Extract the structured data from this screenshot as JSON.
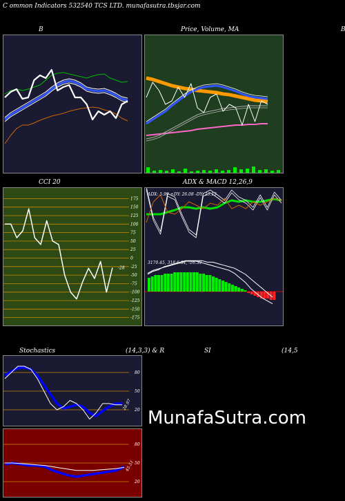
{
  "header": {
    "text": "C                              ommon  Indicators 532540  TCS LTD. munafasutra.tbsjar.com"
  },
  "titles": {
    "b": "B",
    "price": "Price,  Volume,  MA",
    "right_cut": "B",
    "cci": "CCI 20",
    "adx_macd": "ADX  & MACD 12,26,9",
    "stoch_left": "Stochastics",
    "stoch_mid": "(14,3,3) & R",
    "stoch_si": "SI",
    "stoch_right": "(14,5"
  },
  "watermark": "MunafaSutra.com",
  "colors": {
    "navy": "#1a1a33",
    "green_panel": "#1f3d1f",
    "olive_panel": "#2d4a14",
    "dark_red": "#7a0000"
  },
  "chart_data": [
    {
      "id": "bollinger",
      "type": "line",
      "series": [
        {
          "name": "upper",
          "color": "#00bb00",
          "values": [
            135,
            130,
            128,
            130,
            128,
            125,
            122,
            115,
            108,
            105,
            104,
            106,
            108,
            110,
            112,
            109,
            107,
            106,
            112,
            115,
            118,
            117
          ]
        },
        {
          "name": "middle",
          "color": "#3355ff",
          "values": [
            172,
            165,
            160,
            155,
            150,
            145,
            140,
            135,
            128,
            122,
            118,
            116,
            118,
            122,
            128,
            130,
            131,
            130,
            133,
            137,
            142,
            144
          ]
        },
        {
          "name": "lower",
          "color": "#cc6600",
          "values": [
            207,
            195,
            185,
            180,
            180,
            177,
            173,
            170,
            167,
            165,
            163,
            160,
            158,
            156,
            155,
            154,
            155,
            158,
            160,
            164,
            170,
            174
          ]
        },
        {
          "name": "price",
          "color": "#ffffff",
          "values": [
            140,
            132,
            128,
            142,
            140,
            115,
            108,
            112,
            100,
            130,
            125,
            122,
            140,
            140,
            150,
            172,
            160,
            165,
            160,
            170,
            150,
            145
          ]
        }
      ]
    },
    {
      "id": "price_volume_ma",
      "type": "line",
      "series": [
        {
          "name": "ma_orange",
          "color": "#ff9900",
          "values": [
            112,
            114,
            117,
            120,
            123,
            125,
            127,
            128,
            130,
            131,
            132,
            133,
            135,
            136,
            138,
            140,
            142,
            144,
            145,
            146
          ]
        },
        {
          "name": "ma_blue",
          "color": "#3355ff",
          "values": [
            178,
            172,
            166,
            160,
            152,
            145,
            138,
            132,
            128,
            125,
            124,
            123,
            125,
            128,
            131,
            135,
            138,
            140,
            141,
            142
          ]
        },
        {
          "name": "ma_pink",
          "color": "#ff66cc",
          "values": [
            195,
            194,
            193,
            192,
            191,
            190,
            189,
            188,
            186,
            185,
            184,
            183,
            182,
            181,
            180,
            180,
            179,
            179,
            178,
            178
          ]
        },
        {
          "name": "ma_gray",
          "color": "#aaaaaa",
          "values": [
            200,
            198,
            195,
            190,
            185,
            180,
            175,
            170,
            165,
            162,
            160,
            158,
            156,
            155,
            154,
            153,
            152,
            152,
            152,
            152
          ]
        },
        {
          "name": "price",
          "color": "#ffffff",
          "values": [
            140,
            118,
            130,
            150,
            145,
            125,
            140,
            120,
            155,
            162,
            140,
            135,
            160,
            150,
            155,
            180,
            150,
            175,
            145,
            150
          ]
        }
      ],
      "volume": [
        8,
        3,
        4,
        3,
        5,
        2,
        6,
        2,
        3,
        4,
        3,
        5,
        3,
        4,
        8,
        5,
        6,
        9,
        4,
        5,
        3,
        4
      ]
    },
    {
      "id": "cci",
      "type": "line",
      "title": "CCI 20",
      "ticks": [
        175,
        150,
        125,
        100,
        75,
        50,
        25,
        0,
        -25,
        -50,
        -75,
        -100,
        -125,
        -150,
        -175
      ],
      "ylim": [
        -190,
        190
      ],
      "values": [
        100,
        100,
        60,
        80,
        145,
        60,
        40,
        110,
        50,
        40,
        -50,
        -100,
        -120,
        -70,
        -30,
        -60,
        -10,
        -100,
        -28
      ],
      "last_label": "-28"
    },
    {
      "id": "adx",
      "type": "line",
      "label": "ADX: 5.99  +DY: 26.08  -DY: 23.13",
      "series": [
        {
          "name": "adx",
          "color": "#00dd00",
          "values": [
            52,
            52,
            52,
            55,
            58,
            62,
            62,
            60,
            62,
            60,
            62,
            68,
            72,
            70,
            72,
            70,
            70,
            72,
            74,
            72
          ]
        },
        {
          "name": "plus_di",
          "color": "#ffffff",
          "values": [
            90,
            45,
            25,
            80,
            75,
            50,
            28,
            20,
            80,
            85,
            78,
            70,
            85,
            75,
            70,
            60,
            78,
            60,
            82,
            70
          ]
        },
        {
          "name": "minus_di",
          "color": "#cc6600",
          "values": [
            40,
            70,
            80,
            55,
            52,
            60,
            70,
            65,
            60,
            68,
            65,
            75,
            60,
            65,
            60,
            70,
            65,
            70,
            75,
            72
          ]
        }
      ]
    },
    {
      "id": "macd",
      "type": "bar",
      "label": "3170.45,  318          6.84,  -16.39",
      "histogram": [
        10,
        11,
        12,
        12,
        12,
        13,
        13,
        13,
        14,
        14,
        14,
        14,
        14,
        14,
        14,
        14,
        13,
        13,
        12,
        12,
        11,
        10,
        9,
        8,
        7,
        6,
        5,
        4,
        3,
        2,
        1,
        -1,
        -2,
        -3,
        -4,
        -5,
        -5,
        -5,
        -6,
        -6
      ],
      "macd": [
        12,
        14,
        15,
        16,
        17,
        18,
        19,
        20,
        20,
        20,
        19,
        18,
        17,
        16,
        15,
        14,
        12,
        9,
        6,
        2,
        -1,
        -4,
        -6,
        -8
      ],
      "signal": [
        10,
        12,
        13,
        15,
        16,
        17,
        18,
        19,
        19,
        19,
        19,
        18,
        18,
        17,
        16,
        15,
        14,
        12,
        10,
        7,
        4,
        1,
        -2,
        -5
      ]
    },
    {
      "id": "stochastics",
      "type": "line",
      "ticks": [
        80,
        50,
        20
      ],
      "ylim": [
        0,
        100
      ],
      "k": [
        70,
        80,
        90,
        90,
        85,
        70,
        50,
        30,
        20,
        25,
        35,
        30,
        20,
        5,
        15,
        30,
        30,
        28,
        28
      ],
      "d": [
        75,
        82,
        87,
        88,
        85,
        75,
        60,
        45,
        30,
        22,
        25,
        28,
        25,
        15,
        10,
        18,
        25,
        30,
        30
      ],
      "last_label": "28.97"
    },
    {
      "id": "rsi",
      "type": "line",
      "ticks": [
        80,
        50,
        20
      ],
      "ylim": [
        0,
        100
      ],
      "series": [
        {
          "name": "rsi",
          "color": "#0000ff",
          "values": [
            48,
            50,
            48,
            46,
            46,
            44,
            38,
            34,
            30,
            28,
            30,
            32,
            34,
            36,
            38,
            44
          ]
        },
        {
          "name": "smooth",
          "color": "#ffffff",
          "values": [
            50,
            50,
            49,
            48,
            47,
            46,
            44,
            42,
            40,
            38,
            38,
            38,
            39,
            40,
            41,
            43
          ]
        }
      ],
      "last_label": "45.51"
    }
  ]
}
